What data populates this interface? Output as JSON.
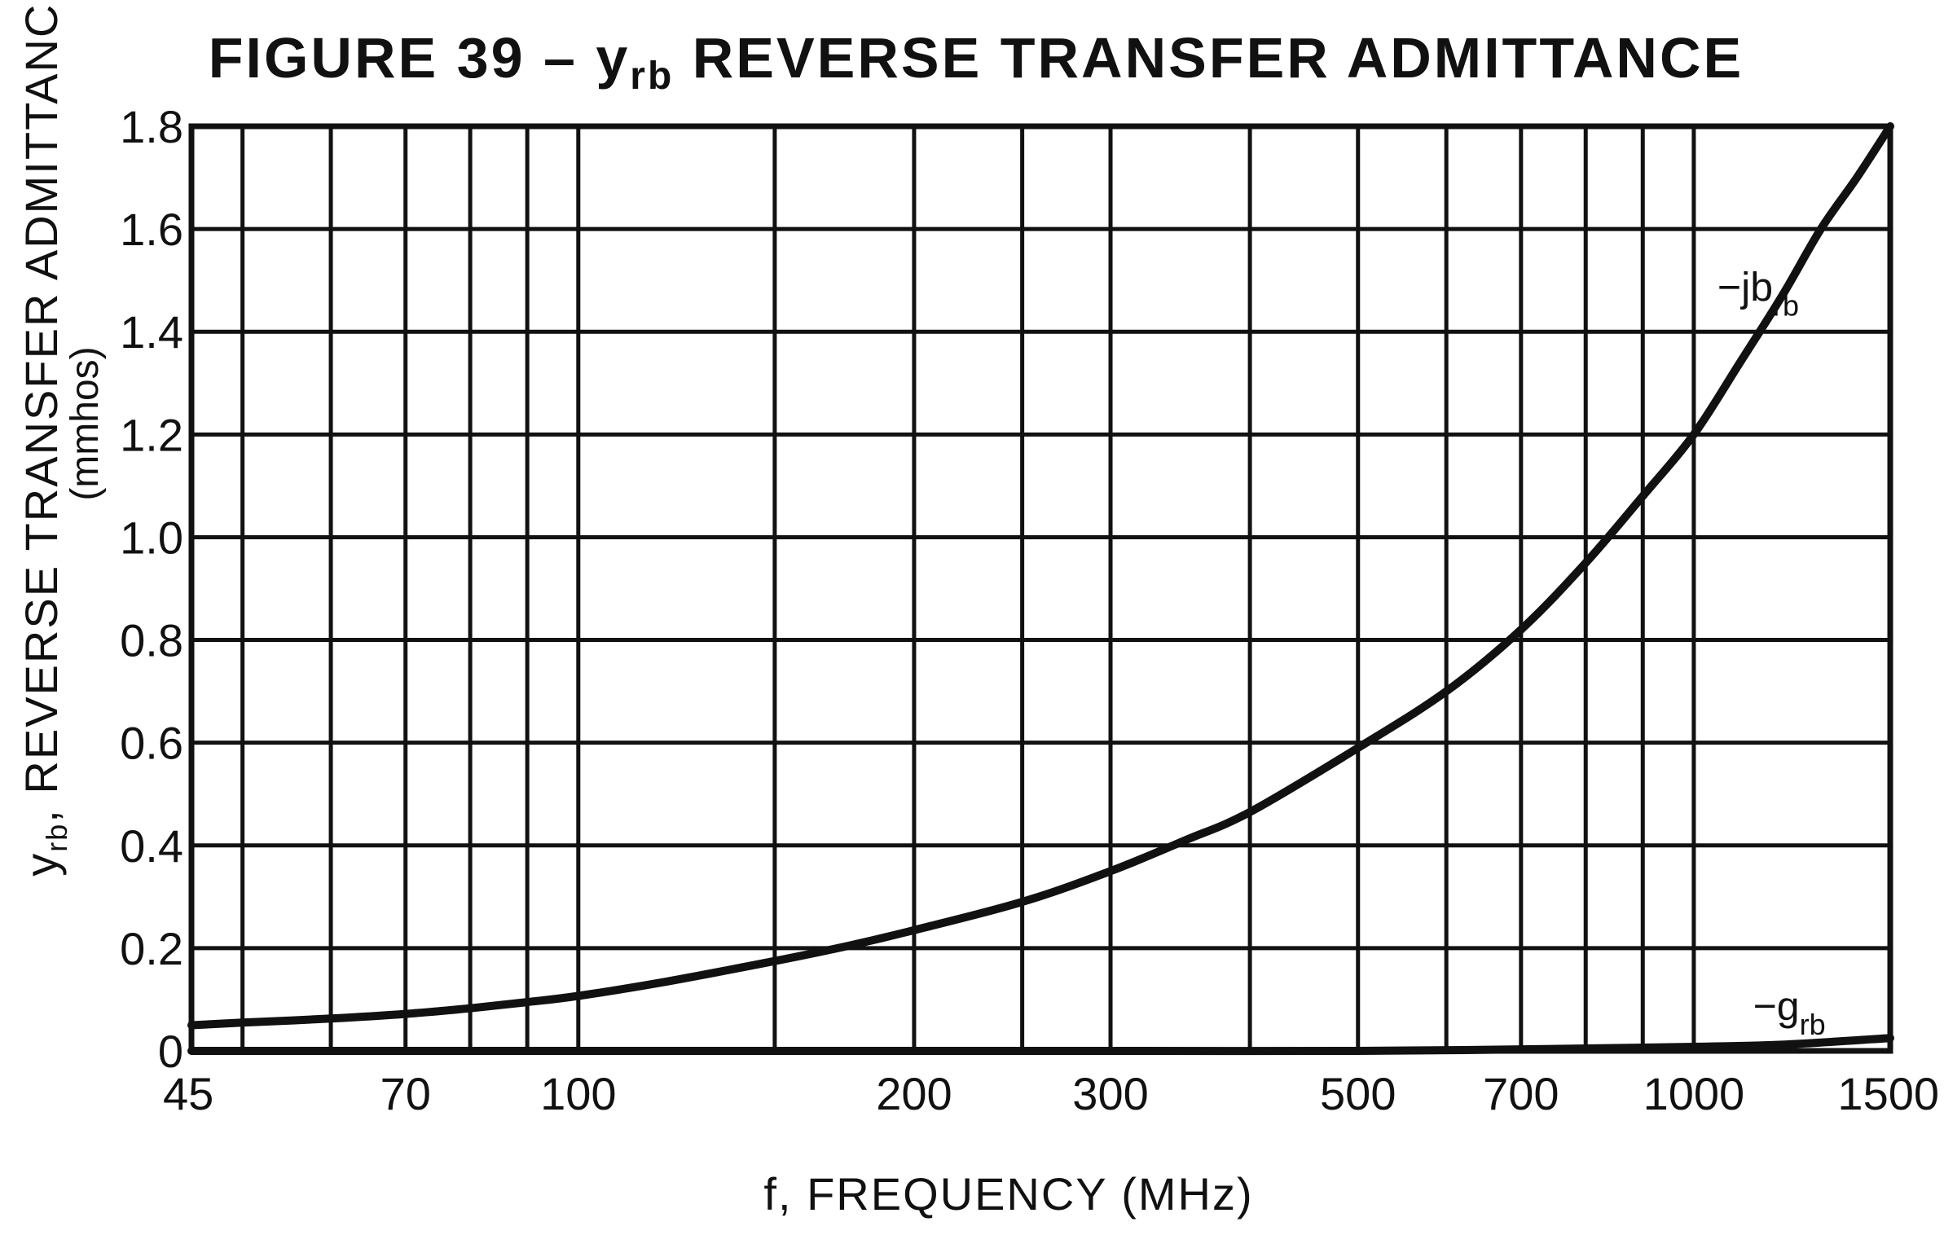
{
  "chart_data": {
    "type": "line",
    "title": {
      "prefix": "FIGURE 39 – ",
      "symbol": "y",
      "subscript": "rb",
      "suffix": " REVERSE TRANSFER ADMITTANCE"
    },
    "xlabel": "f, FREQUENCY (MHz)",
    "ylabel": {
      "symbol": "y",
      "subscript": "rb",
      "text": ", REVERSE TRANSFER ADMITTANCE",
      "unit": "(mmhos)"
    },
    "x_scale": "log",
    "xlim": [
      45,
      1500
    ],
    "ylim": [
      0,
      1.8
    ],
    "x_ticks": [
      {
        "value": 45,
        "label": "45"
      },
      {
        "value": 70,
        "label": "70"
      },
      {
        "value": 100,
        "label": "100"
      },
      {
        "value": 200,
        "label": "200"
      },
      {
        "value": 300,
        "label": "300"
      },
      {
        "value": 500,
        "label": "500"
      },
      {
        "value": 700,
        "label": "700"
      },
      {
        "value": 1000,
        "label": "1000"
      },
      {
        "value": 1500,
        "label": "1500"
      }
    ],
    "y_ticks": [
      {
        "value": 0,
        "label": "0"
      },
      {
        "value": 0.2,
        "label": "0.2"
      },
      {
        "value": 0.4,
        "label": "0.4"
      },
      {
        "value": 0.6,
        "label": "0.6"
      },
      {
        "value": 0.8,
        "label": "0.8"
      },
      {
        "value": 1.0,
        "label": "1.0"
      },
      {
        "value": 1.2,
        "label": "1.2"
      },
      {
        "value": 1.4,
        "label": "1.4"
      },
      {
        "value": 1.6,
        "label": "1.6"
      },
      {
        "value": 1.8,
        "label": "1.8"
      }
    ],
    "x_gridlines": [
      45,
      50,
      60,
      70,
      80,
      90,
      100,
      150,
      200,
      250,
      300,
      400,
      500,
      600,
      700,
      800,
      900,
      1000,
      1500
    ],
    "y_gridlines": [
      0,
      0.2,
      0.4,
      0.6,
      0.8,
      1.0,
      1.2,
      1.4,
      1.6,
      1.8
    ],
    "grid": true,
    "series": [
      {
        "name": "−jb",
        "name_subscript": "rb",
        "x": [
          45,
          50,
          60,
          70,
          80,
          90,
          100,
          120,
          150,
          175,
          200,
          250,
          300,
          350,
          400,
          500,
          600,
          700,
          800,
          900,
          1000,
          1100,
          1200,
          1300,
          1400,
          1500
        ],
        "y": [
          0.05,
          0.055,
          0.063,
          0.072,
          0.083,
          0.095,
          0.107,
          0.135,
          0.175,
          0.205,
          0.235,
          0.29,
          0.35,
          0.41,
          0.465,
          0.59,
          0.7,
          0.82,
          0.95,
          1.08,
          1.2,
          1.34,
          1.47,
          1.6,
          1.7,
          1.8
        ],
        "label_at": {
          "x": 1050,
          "y": 1.46
        }
      },
      {
        "name": "−g",
        "name_subscript": "rb",
        "x": [
          45,
          100,
          200,
          300,
          500,
          700,
          1000,
          1200,
          1500
        ],
        "y": [
          0.0,
          0.0,
          0.0,
          0.0,
          0.0,
          0.003,
          0.008,
          0.012,
          0.025
        ],
        "label_at": {
          "x": 1130,
          "y": 0.06
        }
      }
    ]
  }
}
